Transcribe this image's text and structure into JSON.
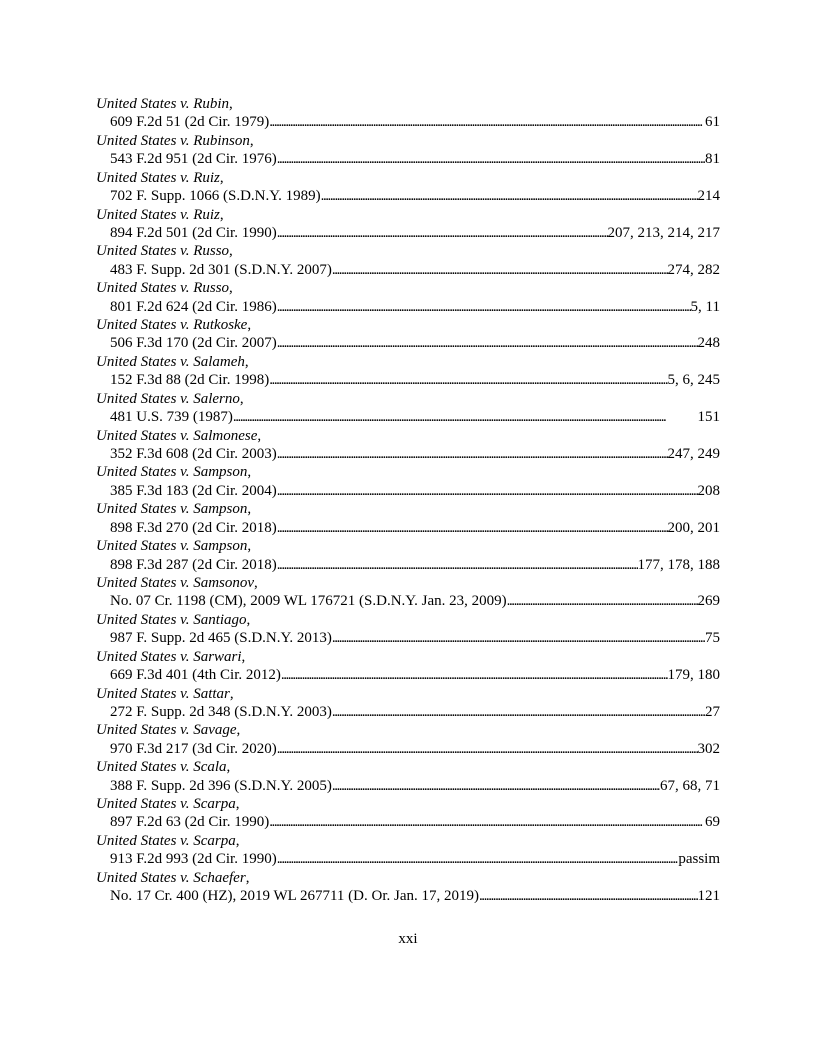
{
  "entries": [
    {
      "name": "United States v. Rubin",
      "citation": "609 F.2d 51 (2d Cir. 1979)",
      "pages": "61"
    },
    {
      "name": "United States v. Rubinson",
      "citation": "543 F.2d 951 (2d Cir. 1976)",
      "pages": "81"
    },
    {
      "name": "United States v. Ruiz",
      "citation": "702 F. Supp. 1066 (S.D.N.Y. 1989)",
      "pages": "214"
    },
    {
      "name": "United States v. Ruiz",
      "citation": "894 F.2d 501 (2d Cir. 1990)",
      "pages": "207, 213, 214, 217"
    },
    {
      "name": "United States v. Russo",
      "citation": "483 F. Supp. 2d 301 (S.D.N.Y. 2007)",
      "pages": "274, 282"
    },
    {
      "name": "United States v. Russo",
      "citation": "801 F.2d 624 (2d Cir. 1986)",
      "pages": "5, 11"
    },
    {
      "name": "United States v. Rutkoske",
      "citation": "506 F.3d 170 (2d Cir. 2007)",
      "pages": "248"
    },
    {
      "name": "United States v. Salameh",
      "citation": "152 F.3d 88 (2d Cir. 1998)",
      "pages": "5, 6, 245"
    },
    {
      "name": "United States v. Salerno",
      "citation": "481 U.S. 739 (1987)",
      "pages": "151"
    },
    {
      "name": "United States v. Salmonese",
      "citation": "352 F.3d 608 (2d Cir. 2003)",
      "pages": "247, 249"
    },
    {
      "name": "United States v. Sampson",
      "citation": "385 F.3d 183 (2d Cir. 2004)",
      "pages": "208"
    },
    {
      "name": "United States v. Sampson",
      "citation": "898 F.3d 270 (2d Cir. 2018)",
      "pages": "200, 201"
    },
    {
      "name": "United States v. Sampson",
      "citation": "898 F.3d 287 (2d Cir. 2018)",
      "pages": "177, 178, 188"
    },
    {
      "name": "United States v. Samsonov",
      "citation": "No. 07 Cr. 1198 (CM), 2009 WL 176721 (S.D.N.Y. Jan. 23, 2009)",
      "pages": "269"
    },
    {
      "name": "United States v. Santiago",
      "citation": "987 F. Supp. 2d 465 (S.D.N.Y. 2013)",
      "pages": "75"
    },
    {
      "name": "United States v. Sarwari",
      "citation": "669 F.3d 401 (4th Cir. 2012)",
      "pages": "179, 180"
    },
    {
      "name": "United States v. Sattar",
      "citation": "272 F. Supp. 2d 348 (S.D.N.Y. 2003)",
      "pages": "27"
    },
    {
      "name": "United States v. Savage",
      "citation": "970 F.3d 217 (3d Cir. 2020)",
      "pages": "302"
    },
    {
      "name": "United States v. Scala",
      "citation": "388 F. Supp. 2d 396 (S.D.N.Y. 2005)",
      "pages": "67, 68, 71"
    },
    {
      "name": "United States v. Scarpa",
      "citation": "897 F.2d 63 (2d Cir. 1990)",
      "pages": "69"
    },
    {
      "name": "United States v. Scarpa",
      "citation": "913 F.2d 993 (2d Cir. 1990)",
      "pages": "passim"
    },
    {
      "name": "United States v. Schaefer",
      "citation": "No. 17 Cr. 400 (HZ), 2019 WL 267711 (D. Or. Jan. 17, 2019)",
      "pages": "121"
    }
  ],
  "name_suffix": ",",
  "page_number": "xxi"
}
